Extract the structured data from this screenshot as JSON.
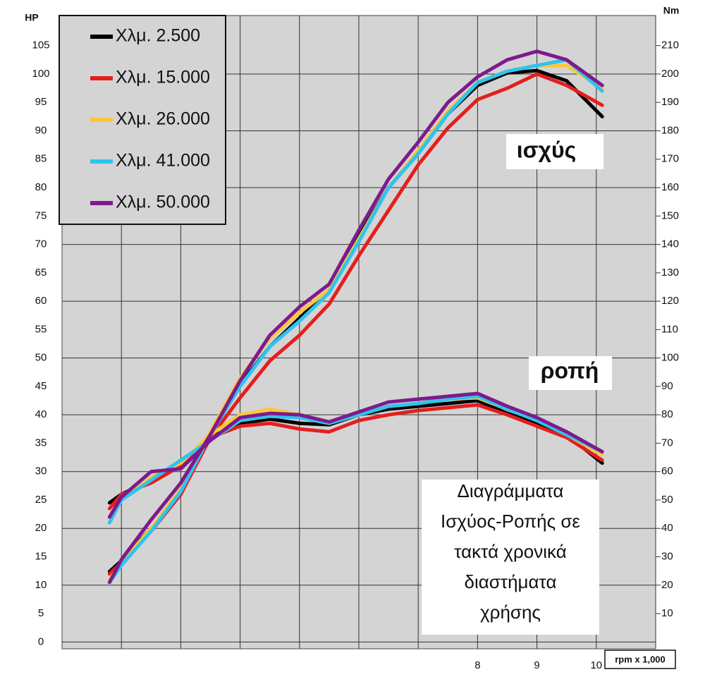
{
  "chart_data": {
    "type": "line",
    "y_label": "HP",
    "y2_label": "Nm",
    "x_label": "rpm x 1,000",
    "annotations": [
      "ισχύς",
      "ροπή"
    ],
    "note_lines": [
      "Διαγράμματα",
      "Ισχύος-Ροπής σε",
      "τακτά χρονικά",
      "διαστήματα",
      "χρήσης"
    ],
    "x": [
      1.8,
      2.0,
      2.5,
      3.0,
      3.5,
      4.0,
      4.5,
      5.0,
      5.5,
      6.0,
      6.5,
      7.0,
      7.5,
      8.0,
      8.5,
      9.0,
      9.5,
      10.1
    ],
    "series": [
      {
        "name": "Χλμ. 2.500",
        "color": "#000000",
        "values": [
          12.4,
          14.3,
          20,
          26,
          36.6,
          45.3,
          52,
          57,
          62,
          71.4,
          80,
          86,
          93,
          98,
          100.2,
          100.6,
          98.8,
          92.5
        ],
        "torque_values": [
          49,
          52,
          57,
          63,
          72,
          77,
          78.5,
          77,
          76.5,
          80,
          82,
          83,
          84,
          85,
          80.5,
          77,
          73,
          63
        ]
      },
      {
        "name": "Χλμ. 15.000",
        "color": "#e41e1e",
        "values": [
          12,
          14,
          19.5,
          26,
          36,
          43,
          49.5,
          54,
          59.5,
          68,
          76,
          84,
          90.5,
          95.5,
          97.5,
          100,
          98,
          94.5
        ],
        "torque_values": [
          47,
          52,
          56,
          62,
          72,
          76,
          77,
          75,
          74,
          78,
          80,
          81.5,
          82.5,
          83.5,
          80,
          76,
          72,
          64
        ]
      },
      {
        "name": "Χλμ. 26.000",
        "color": "#fcc63a",
        "values": [
          11,
          14,
          20,
          27,
          37,
          46.5,
          53.5,
          58,
          62,
          71,
          80,
          86.5,
          93.5,
          98.5,
          100.5,
          101.5,
          101.5,
          97.5
        ],
        "torque_values": [
          44,
          50,
          58,
          63,
          73,
          80,
          82,
          80,
          77,
          80,
          83,
          84,
          85.5,
          86,
          82,
          78,
          73,
          66
        ]
      },
      {
        "name": "Χλμ. 41.000",
        "color": "#2fc4ee",
        "values": [
          10.5,
          13.5,
          19.5,
          26.5,
          36.5,
          45,
          52,
          56.5,
          61.5,
          70.5,
          80,
          86,
          93,
          98.5,
          100.5,
          101.5,
          102.5,
          97
        ],
        "torque_values": [
          42,
          50,
          57,
          64,
          71,
          78,
          79.5,
          79,
          77,
          80,
          83,
          84,
          85.5,
          86.5,
          82,
          78,
          73,
          67
        ]
      },
      {
        "name": "Χλμ. 50.000",
        "color": "#7d1a8c",
        "values": [
          10.5,
          14.5,
          21.5,
          28,
          36.5,
          46,
          54,
          59,
          63,
          72.5,
          81.5,
          88,
          95,
          99.5,
          102.5,
          104,
          102.5,
          98
        ],
        "torque_values": [
          44,
          51,
          60,
          61,
          71,
          79,
          80.5,
          80,
          77.5,
          81,
          84.5,
          85.5,
          86.5,
          87.5,
          83,
          79,
          74,
          67
        ]
      }
    ],
    "xlim": [
      1,
      11
    ],
    "xticks": [
      {
        "value": 2,
        "label": null
      },
      {
        "value": 3,
        "label": null
      },
      {
        "value": 4,
        "label": null
      },
      {
        "value": 5,
        "label": null
      },
      {
        "value": 6,
        "label": null
      },
      {
        "value": 7,
        "label": null
      },
      8,
      9,
      10,
      {
        "value": 11,
        "label": null
      }
    ],
    "ylim": [
      -1.2,
      110.3
    ],
    "yticks": [
      0,
      5,
      10,
      15,
      20,
      25,
      30,
      35,
      40,
      45,
      50,
      55,
      60,
      65,
      70,
      75,
      80,
      85,
      90,
      95,
      100,
      105
    ],
    "y2lim": [
      -2.4,
      220.6
    ],
    "y2ticks": [
      10,
      20,
      30,
      40,
      50,
      60,
      70,
      80,
      90,
      100,
      110,
      120,
      130,
      140,
      150,
      160,
      170,
      180,
      190,
      200,
      210
    ],
    "grid": true
  }
}
